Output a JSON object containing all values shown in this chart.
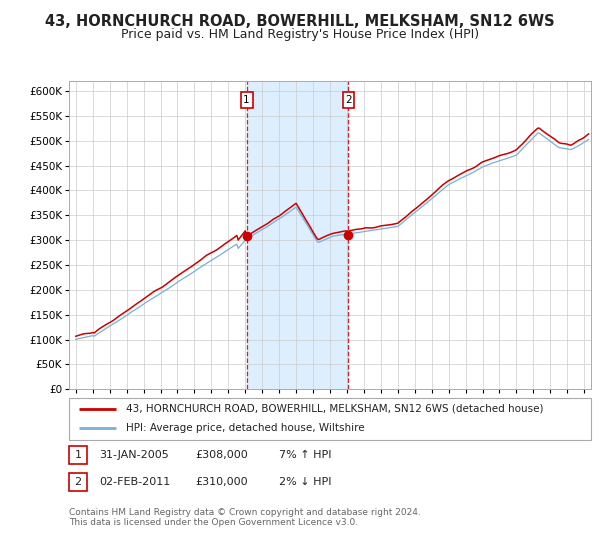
{
  "title": "43, HORNCHURCH ROAD, BOWERHILL, MELKSHAM, SN12 6WS",
  "subtitle": "Price paid vs. HM Land Registry's House Price Index (HPI)",
  "legend_line1": "43, HORNCHURCH ROAD, BOWERHILL, MELKSHAM, SN12 6WS (detached house)",
  "legend_line2": "HPI: Average price, detached house, Wiltshire",
  "annotation1_label": "1",
  "annotation1_date": "31-JAN-2005",
  "annotation1_price": "£308,000",
  "annotation1_hpi": "7% ↑ HPI",
  "annotation2_label": "2",
  "annotation2_date": "02-FEB-2011",
  "annotation2_price": "£310,000",
  "annotation2_hpi": "2% ↓ HPI",
  "copyright": "Contains HM Land Registry data © Crown copyright and database right 2024.\nThis data is licensed under the Open Government Licence v3.0.",
  "sale1_year": 2005.08,
  "sale1_value": 308000,
  "sale2_year": 2011.09,
  "sale2_value": 310000,
  "ylim": [
    0,
    620000
  ],
  "xlim_start": 1994.6,
  "xlim_end": 2025.4,
  "red_line_color": "#cc0000",
  "blue_line_color": "#7ab0d4",
  "shade_color": "#ddeeff",
  "background_color": "#ffffff",
  "grid_color": "#cccccc",
  "sale_marker_color": "#cc0000",
  "annotation_box_color": "#cc0000",
  "title_fontsize": 10.5,
  "subtitle_fontsize": 9.0
}
